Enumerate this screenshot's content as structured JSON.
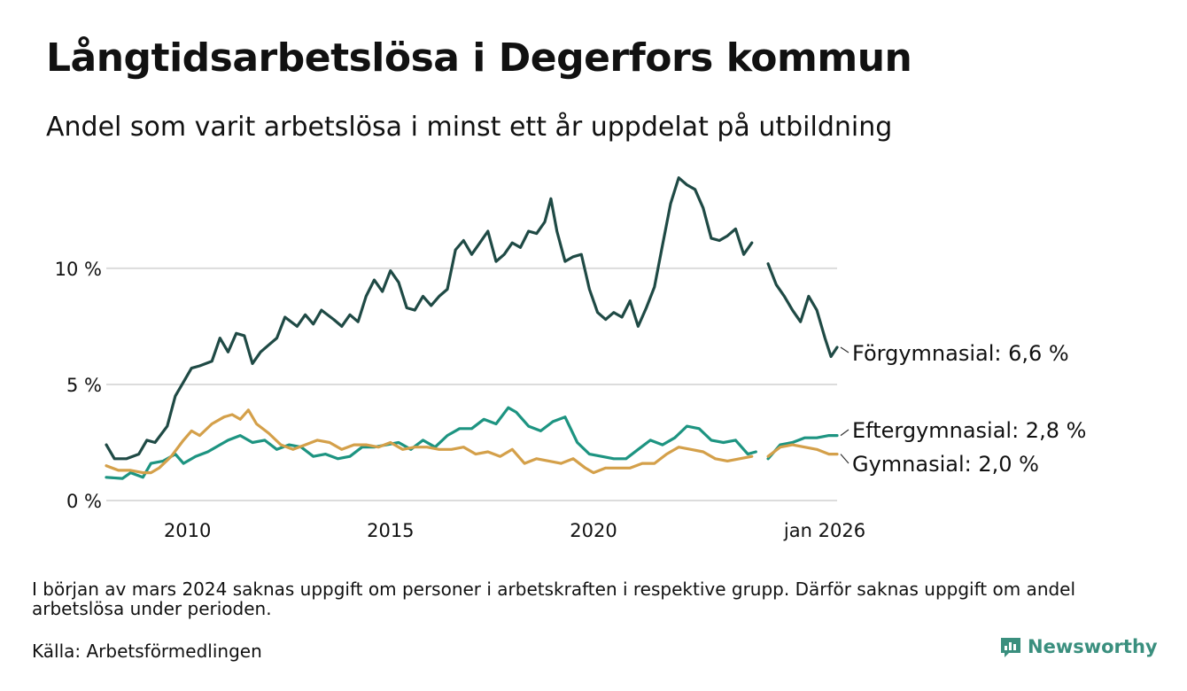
{
  "header": {
    "title": "Långtidsarbetslösa i Degerfors kommun",
    "subtitle": "Andel som varit arbetslösa i minst ett år uppdelat på utbildning"
  },
  "footer": {
    "note": "I början av mars 2024 saknas uppgift om personer i arbetskraften i respektive grupp. Därför saknas uppgift om andel arbetslösa under perioden.",
    "source": "Källa: Arbetsförmedlingen",
    "brand": "Newsworthy"
  },
  "chart_data": {
    "type": "line",
    "title": "Långtidsarbetslösa i Degerfors kommun",
    "xlabel": "",
    "ylabel": "",
    "xlim": [
      2008.0,
      2026.0
    ],
    "ylim": [
      0,
      14.5
    ],
    "y_ticks": [
      {
        "value": 0,
        "label": "0 %"
      },
      {
        "value": 5,
        "label": "5 %"
      },
      {
        "value": 10,
        "label": "10 %"
      }
    ],
    "x_ticks": [
      {
        "value": 2010,
        "label": "2010"
      },
      {
        "value": 2015,
        "label": "2015"
      },
      {
        "value": 2020,
        "label": "2020"
      },
      {
        "value": 2026.0,
        "label": "jan 2026"
      }
    ],
    "grid": true,
    "gap": {
      "from": 2024.0,
      "to": 2024.3
    },
    "series": [
      {
        "name": "Förgymnasial",
        "end_label": "Förgymnasial: 6,6 %",
        "color": "#1f4a45",
        "points": [
          [
            2008.0,
            2.4
          ],
          [
            2008.2,
            1.8
          ],
          [
            2008.5,
            1.8
          ],
          [
            2008.8,
            2.0
          ],
          [
            2009.0,
            2.6
          ],
          [
            2009.2,
            2.5
          ],
          [
            2009.5,
            3.2
          ],
          [
            2009.7,
            4.5
          ],
          [
            2009.9,
            5.1
          ],
          [
            2010.1,
            5.7
          ],
          [
            2010.3,
            5.8
          ],
          [
            2010.6,
            6.0
          ],
          [
            2010.8,
            7.0
          ],
          [
            2011.0,
            6.4
          ],
          [
            2011.2,
            7.2
          ],
          [
            2011.4,
            7.1
          ],
          [
            2011.6,
            5.9
          ],
          [
            2011.8,
            6.4
          ],
          [
            2012.0,
            6.7
          ],
          [
            2012.2,
            7.0
          ],
          [
            2012.4,
            7.9
          ],
          [
            2012.7,
            7.5
          ],
          [
            2012.9,
            8.0
          ],
          [
            2013.1,
            7.6
          ],
          [
            2013.3,
            8.2
          ],
          [
            2013.6,
            7.8
          ],
          [
            2013.8,
            7.5
          ],
          [
            2014.0,
            8.0
          ],
          [
            2014.2,
            7.7
          ],
          [
            2014.4,
            8.8
          ],
          [
            2014.6,
            9.5
          ],
          [
            2014.8,
            9.0
          ],
          [
            2015.0,
            9.9
          ],
          [
            2015.2,
            9.4
          ],
          [
            2015.4,
            8.3
          ],
          [
            2015.6,
            8.2
          ],
          [
            2015.8,
            8.8
          ],
          [
            2016.0,
            8.4
          ],
          [
            2016.2,
            8.8
          ],
          [
            2016.4,
            9.1
          ],
          [
            2016.6,
            10.8
          ],
          [
            2016.8,
            11.2
          ],
          [
            2017.0,
            10.6
          ],
          [
            2017.2,
            11.1
          ],
          [
            2017.4,
            11.6
          ],
          [
            2017.6,
            10.3
          ],
          [
            2017.8,
            10.6
          ],
          [
            2018.0,
            11.1
          ],
          [
            2018.2,
            10.9
          ],
          [
            2018.4,
            11.6
          ],
          [
            2018.6,
            11.5
          ],
          [
            2018.8,
            12.0
          ],
          [
            2018.95,
            13.0
          ],
          [
            2019.1,
            11.6
          ],
          [
            2019.3,
            10.3
          ],
          [
            2019.5,
            10.5
          ],
          [
            2019.7,
            10.6
          ],
          [
            2019.9,
            9.1
          ],
          [
            2020.1,
            8.1
          ],
          [
            2020.3,
            7.8
          ],
          [
            2020.5,
            8.1
          ],
          [
            2020.7,
            7.9
          ],
          [
            2020.9,
            8.6
          ],
          [
            2021.1,
            7.5
          ],
          [
            2021.3,
            8.3
          ],
          [
            2021.5,
            9.2
          ],
          [
            2021.7,
            11.0
          ],
          [
            2021.9,
            12.8
          ],
          [
            2022.1,
            13.9
          ],
          [
            2022.3,
            13.6
          ],
          [
            2022.5,
            13.4
          ],
          [
            2022.7,
            12.6
          ],
          [
            2022.9,
            11.3
          ],
          [
            2023.1,
            11.2
          ],
          [
            2023.3,
            11.4
          ],
          [
            2023.5,
            11.7
          ],
          [
            2023.7,
            10.6
          ],
          [
            2023.9,
            11.1
          ],
          [
            2024.3,
            10.2
          ],
          [
            2024.5,
            9.3
          ],
          [
            2024.7,
            8.8
          ],
          [
            2024.9,
            8.2
          ],
          [
            2025.1,
            7.7
          ],
          [
            2025.3,
            8.8
          ],
          [
            2025.5,
            8.2
          ],
          [
            2025.7,
            7.0
          ],
          [
            2025.85,
            6.2
          ],
          [
            2026.0,
            6.6
          ]
        ]
      },
      {
        "name": "Eftergymnasial",
        "end_label": "Eftergymnasial: 2,8 %",
        "color": "#1d9481",
        "points": [
          [
            2008.0,
            1.0
          ],
          [
            2008.4,
            0.95
          ],
          [
            2008.6,
            1.2
          ],
          [
            2008.9,
            1.0
          ],
          [
            2009.1,
            1.6
          ],
          [
            2009.4,
            1.7
          ],
          [
            2009.7,
            2.0
          ],
          [
            2009.9,
            1.6
          ],
          [
            2010.2,
            1.9
          ],
          [
            2010.5,
            2.1
          ],
          [
            2010.8,
            2.4
          ],
          [
            2011.0,
            2.6
          ],
          [
            2011.3,
            2.8
          ],
          [
            2011.6,
            2.5
          ],
          [
            2011.9,
            2.6
          ],
          [
            2012.2,
            2.2
          ],
          [
            2012.5,
            2.4
          ],
          [
            2012.8,
            2.3
          ],
          [
            2013.1,
            1.9
          ],
          [
            2013.4,
            2.0
          ],
          [
            2013.7,
            1.8
          ],
          [
            2014.0,
            1.9
          ],
          [
            2014.3,
            2.3
          ],
          [
            2014.6,
            2.3
          ],
          [
            2014.9,
            2.4
          ],
          [
            2015.2,
            2.5
          ],
          [
            2015.5,
            2.2
          ],
          [
            2015.8,
            2.6
          ],
          [
            2016.1,
            2.3
          ],
          [
            2016.4,
            2.8
          ],
          [
            2016.7,
            3.1
          ],
          [
            2017.0,
            3.1
          ],
          [
            2017.3,
            3.5
          ],
          [
            2017.6,
            3.3
          ],
          [
            2017.9,
            4.0
          ],
          [
            2018.1,
            3.8
          ],
          [
            2018.4,
            3.2
          ],
          [
            2018.7,
            3.0
          ],
          [
            2019.0,
            3.4
          ],
          [
            2019.3,
            3.6
          ],
          [
            2019.6,
            2.5
          ],
          [
            2019.9,
            2.0
          ],
          [
            2020.2,
            1.9
          ],
          [
            2020.5,
            1.8
          ],
          [
            2020.8,
            1.8
          ],
          [
            2021.1,
            2.2
          ],
          [
            2021.4,
            2.6
          ],
          [
            2021.7,
            2.4
          ],
          [
            2022.0,
            2.7
          ],
          [
            2022.3,
            3.2
          ],
          [
            2022.6,
            3.1
          ],
          [
            2022.9,
            2.6
          ],
          [
            2023.2,
            2.5
          ],
          [
            2023.5,
            2.6
          ],
          [
            2023.8,
            2.0
          ],
          [
            2024.0,
            2.1
          ],
          [
            2024.3,
            1.8
          ],
          [
            2024.6,
            2.4
          ],
          [
            2024.9,
            2.5
          ],
          [
            2025.2,
            2.7
          ],
          [
            2025.5,
            2.7
          ],
          [
            2025.8,
            2.8
          ],
          [
            2026.0,
            2.8
          ]
        ]
      },
      {
        "name": "Gymnasial",
        "end_label": "Gymnasial: 2,0 %",
        "color": "#d4a04a",
        "points": [
          [
            2008.0,
            1.5
          ],
          [
            2008.3,
            1.3
          ],
          [
            2008.6,
            1.3
          ],
          [
            2008.9,
            1.2
          ],
          [
            2009.1,
            1.2
          ],
          [
            2009.3,
            1.4
          ],
          [
            2009.6,
            1.9
          ],
          [
            2009.9,
            2.6
          ],
          [
            2010.1,
            3.0
          ],
          [
            2010.3,
            2.8
          ],
          [
            2010.6,
            3.3
          ],
          [
            2010.9,
            3.6
          ],
          [
            2011.1,
            3.7
          ],
          [
            2011.3,
            3.5
          ],
          [
            2011.5,
            3.9
          ],
          [
            2011.7,
            3.3
          ],
          [
            2012.0,
            2.9
          ],
          [
            2012.3,
            2.4
          ],
          [
            2012.6,
            2.2
          ],
          [
            2012.9,
            2.4
          ],
          [
            2013.2,
            2.6
          ],
          [
            2013.5,
            2.5
          ],
          [
            2013.8,
            2.2
          ],
          [
            2014.1,
            2.4
          ],
          [
            2014.4,
            2.4
          ],
          [
            2014.7,
            2.3
          ],
          [
            2015.0,
            2.5
          ],
          [
            2015.3,
            2.2
          ],
          [
            2015.6,
            2.3
          ],
          [
            2015.9,
            2.3
          ],
          [
            2016.2,
            2.2
          ],
          [
            2016.5,
            2.2
          ],
          [
            2016.8,
            2.3
          ],
          [
            2017.1,
            2.0
          ],
          [
            2017.4,
            2.1
          ],
          [
            2017.7,
            1.9
          ],
          [
            2018.0,
            2.2
          ],
          [
            2018.3,
            1.6
          ],
          [
            2018.6,
            1.8
          ],
          [
            2018.9,
            1.7
          ],
          [
            2019.2,
            1.6
          ],
          [
            2019.5,
            1.8
          ],
          [
            2019.8,
            1.4
          ],
          [
            2020.0,
            1.2
          ],
          [
            2020.3,
            1.4
          ],
          [
            2020.6,
            1.4
          ],
          [
            2020.9,
            1.4
          ],
          [
            2021.2,
            1.6
          ],
          [
            2021.5,
            1.6
          ],
          [
            2021.8,
            2.0
          ],
          [
            2022.1,
            2.3
          ],
          [
            2022.4,
            2.2
          ],
          [
            2022.7,
            2.1
          ],
          [
            2023.0,
            1.8
          ],
          [
            2023.3,
            1.7
          ],
          [
            2023.6,
            1.8
          ],
          [
            2023.9,
            1.9
          ],
          [
            2024.3,
            1.9
          ],
          [
            2024.6,
            2.3
          ],
          [
            2024.9,
            2.4
          ],
          [
            2025.2,
            2.3
          ],
          [
            2025.5,
            2.2
          ],
          [
            2025.8,
            2.0
          ],
          [
            2026.0,
            2.0
          ]
        ]
      }
    ]
  }
}
